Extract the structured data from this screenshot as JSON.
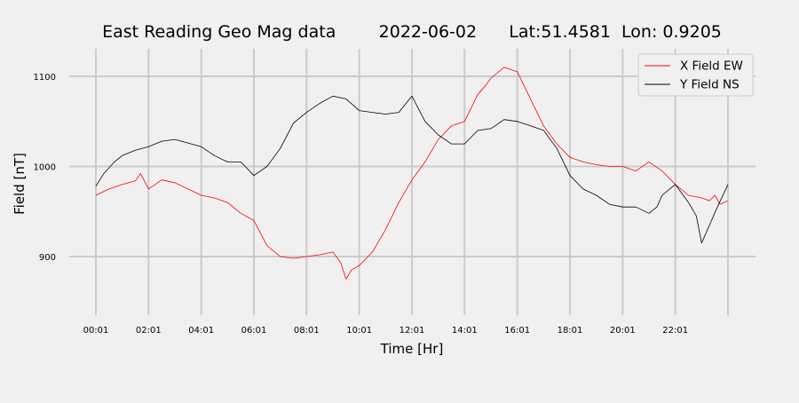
{
  "chart_data": {
    "type": "line",
    "title": "East Reading Geo Mag data        2022-06-02      Lat:51.4581  Lon: 0.9205",
    "xlabel": "Time  [Hr]",
    "ylabel": "Field  [nT]",
    "x_unit": "hours",
    "xlim": [
      0,
      24
    ],
    "ylim": [
      833,
      1128
    ],
    "x_ticks": [
      {
        "value": 0.0,
        "label": "00:01"
      },
      {
        "value": 2.0,
        "label": "02:01"
      },
      {
        "value": 4.0,
        "label": "04:01"
      },
      {
        "value": 6.0,
        "label": "06:01"
      },
      {
        "value": 8.0,
        "label": "08:01"
      },
      {
        "value": 10.0,
        "label": "10:01"
      },
      {
        "value": 12.0,
        "label": "12:01"
      },
      {
        "value": 14.0,
        "label": "14:01"
      },
      {
        "value": 16.0,
        "label": "16:01"
      },
      {
        "value": 18.0,
        "label": "18:01"
      },
      {
        "value": 20.0,
        "label": "20:01"
      },
      {
        "value": 22.0,
        "label": "22:01"
      }
    ],
    "x_gridlines": [
      0,
      2,
      4,
      6,
      8,
      10,
      12,
      14,
      16,
      18,
      20,
      22,
      24
    ],
    "y_ticks": [
      900,
      1000,
      1100
    ],
    "grid": true,
    "legend_position": "top-right",
    "series": [
      {
        "name": "X Field EW",
        "color": "#ff0000",
        "x": [
          0.0,
          0.5,
          1.0,
          1.5,
          1.7,
          2.0,
          2.5,
          3.0,
          3.5,
          4.0,
          4.5,
          5.0,
          5.5,
          6.0,
          6.5,
          7.0,
          7.5,
          8.0,
          8.5,
          9.0,
          9.3,
          9.5,
          9.7,
          10.0,
          10.5,
          11.0,
          11.5,
          12.0,
          12.5,
          13.0,
          13.5,
          14.0,
          14.5,
          14.8,
          15.0,
          15.5,
          16.0,
          16.5,
          17.0,
          17.5,
          18.0,
          18.5,
          19.0,
          19.5,
          20.0,
          20.5,
          21.0,
          21.5,
          22.0,
          22.5,
          23.0,
          23.3,
          23.5,
          23.7,
          24.0
        ],
        "y": [
          968,
          975,
          980,
          984,
          992,
          975,
          985,
          982,
          975,
          968,
          965,
          960,
          948,
          940,
          912,
          900,
          898,
          900,
          902,
          905,
          893,
          875,
          885,
          890,
          905,
          930,
          960,
          985,
          1005,
          1030,
          1045,
          1050,
          1080,
          1090,
          1098,
          1110,
          1105,
          1075,
          1045,
          1025,
          1010,
          1005,
          1002,
          1000,
          1000,
          995,
          1005,
          995,
          980,
          968,
          965,
          962,
          968,
          958,
          962
        ]
      },
      {
        "name": "Y Field NS",
        "color": "#000000",
        "x": [
          0.0,
          0.3,
          0.7,
          1.0,
          1.5,
          2.0,
          2.5,
          3.0,
          3.5,
          4.0,
          4.5,
          5.0,
          5.5,
          6.0,
          6.5,
          7.0,
          7.5,
          8.0,
          8.5,
          9.0,
          9.5,
          10.0,
          10.5,
          11.0,
          11.5,
          12.0,
          12.5,
          13.0,
          13.5,
          14.0,
          14.5,
          15.0,
          15.5,
          16.0,
          16.5,
          17.0,
          17.5,
          18.0,
          18.5,
          19.0,
          19.5,
          20.0,
          20.5,
          21.0,
          21.3,
          21.5,
          22.0,
          22.5,
          22.8,
          23.0,
          23.3,
          23.6,
          24.0
        ],
        "y": [
          978,
          992,
          1005,
          1012,
          1018,
          1022,
          1028,
          1030,
          1026,
          1022,
          1012,
          1005,
          1005,
          990,
          1000,
          1020,
          1048,
          1060,
          1070,
          1078,
          1075,
          1062,
          1060,
          1058,
          1060,
          1078,
          1050,
          1035,
          1025,
          1025,
          1040,
          1042,
          1052,
          1050,
          1045,
          1040,
          1020,
          990,
          975,
          968,
          958,
          955,
          955,
          948,
          955,
          968,
          980,
          960,
          945,
          915,
          935,
          955,
          980
        ]
      }
    ]
  }
}
